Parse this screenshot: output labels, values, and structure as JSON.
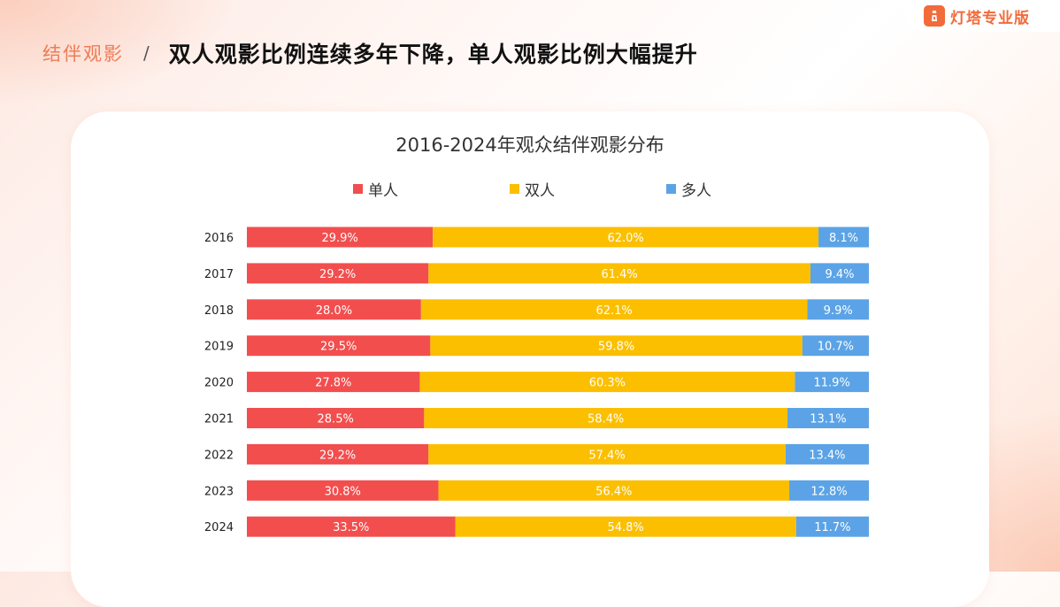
{
  "brand": {
    "logo_text": "灯塔专业版"
  },
  "header": {
    "section": "结伴观影",
    "separator": "/",
    "headline": "双人观影比例连续多年下降，单人观影比例大幅提升"
  },
  "colors": {
    "single": "#f24e4e",
    "double": "#fcbf00",
    "multi": "#5ba3e6",
    "accent": "#ee7c55"
  },
  "chart_data": {
    "type": "bar",
    "orientation": "horizontal",
    "stacked": true,
    "stacking": "percent",
    "title": "2016-2024年观众结伴观影分布",
    "legend_position": "top",
    "categories": [
      "2016",
      "2017",
      "2018",
      "2019",
      "2020",
      "2021",
      "2022",
      "2023",
      "2024"
    ],
    "series": [
      {
        "name": "单人",
        "color": "#f24e4e",
        "values": [
          29.9,
          29.2,
          28.0,
          29.5,
          27.8,
          28.5,
          29.2,
          30.8,
          33.5
        ],
        "labels": [
          "29.9%",
          "29.2%",
          "28.0%",
          "29.5%",
          "27.8%",
          "28.5%",
          "29.2%",
          "30.8%",
          "33.5%"
        ]
      },
      {
        "name": "双人",
        "color": "#fcbf00",
        "values": [
          62.0,
          61.4,
          62.1,
          59.8,
          60.3,
          58.4,
          57.4,
          56.4,
          54.8
        ],
        "labels": [
          "62.0%",
          "61.4%",
          "62.1%",
          "59.8%",
          "60.3%",
          "58.4%",
          "57.4%",
          "56.4%",
          "54.8%"
        ]
      },
      {
        "name": "多人",
        "color": "#5ba3e6",
        "values": [
          8.1,
          9.4,
          9.9,
          10.7,
          11.9,
          13.1,
          13.4,
          12.8,
          11.7
        ],
        "labels": [
          "8.1%",
          "9.4%",
          "9.9%",
          "10.7%",
          "11.9%",
          "13.1%",
          "13.4%",
          "12.8%",
          "11.7%"
        ]
      }
    ],
    "xlim": [
      0,
      100
    ]
  }
}
